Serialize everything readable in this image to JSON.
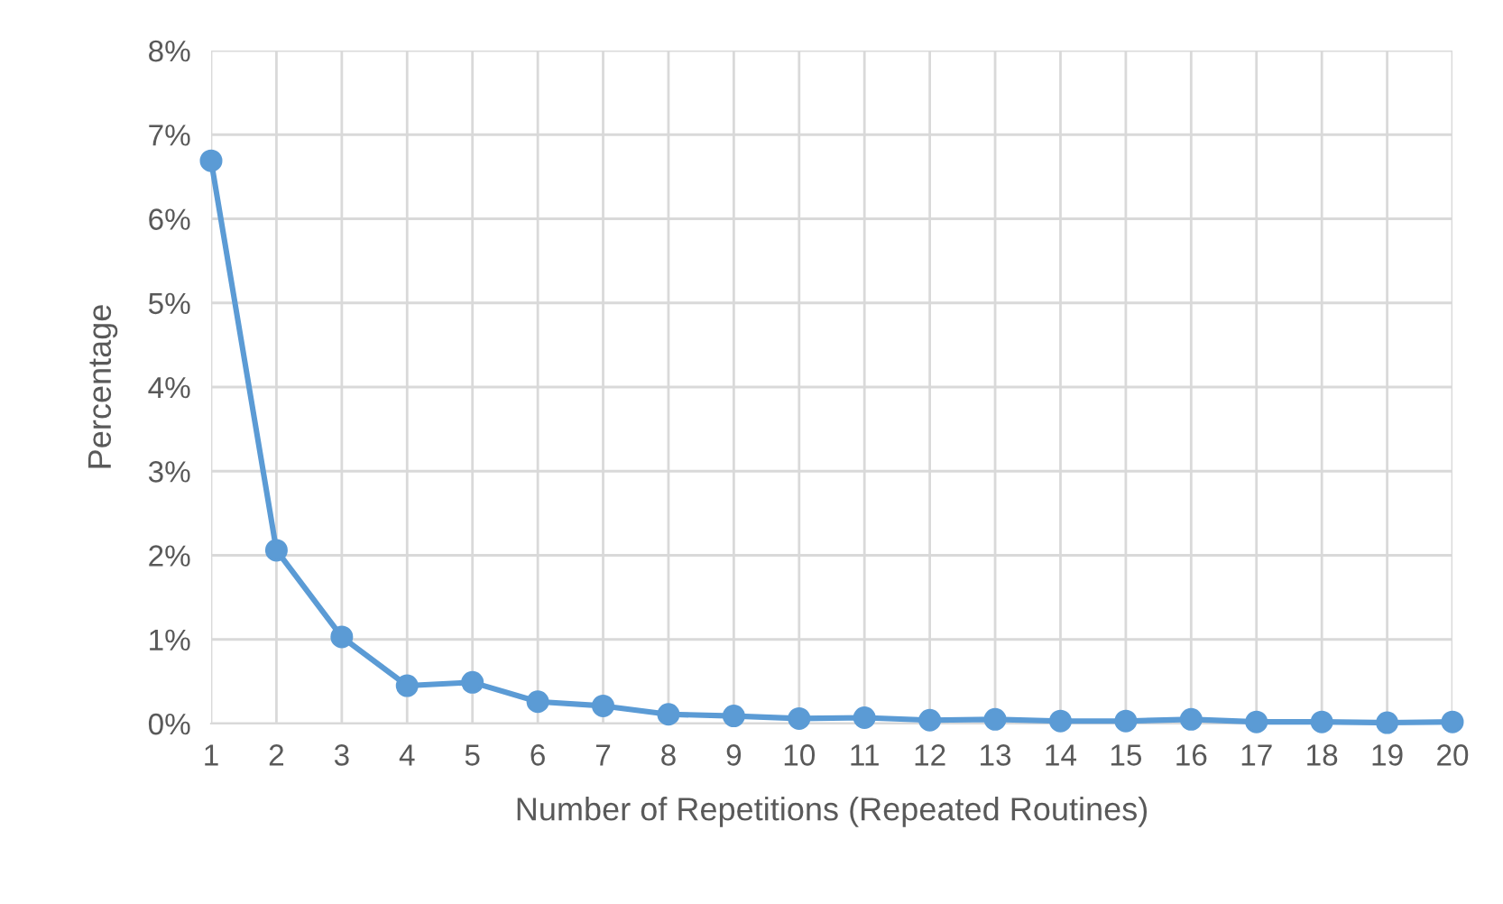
{
  "chart_data": {
    "type": "line",
    "xlabel": "Number of Repetitions (Repeated Routines)",
    "ylabel": "Percentage",
    "categories": [
      "1",
      "2",
      "3",
      "4",
      "5",
      "6",
      "7",
      "8",
      "9",
      "10",
      "11",
      "12",
      "13",
      "14",
      "15",
      "16",
      "17",
      "18",
      "19",
      "20"
    ],
    "series": [
      {
        "color": "#5b9bd5",
        "values": [
          6.69,
          2.06,
          1.03,
          0.45,
          0.49,
          0.26,
          0.21,
          0.11,
          0.09,
          0.06,
          0.07,
          0.04,
          0.05,
          0.03,
          0.03,
          0.05,
          0.02,
          0.02,
          0.01,
          0.02
        ]
      }
    ],
    "ylim": [
      0,
      8
    ],
    "yticks": [
      {
        "value": 0,
        "label": "0%"
      },
      {
        "value": 1,
        "label": "1%"
      },
      {
        "value": 2,
        "label": "2%"
      },
      {
        "value": 3,
        "label": "3%"
      },
      {
        "value": 4,
        "label": "4%"
      },
      {
        "value": 5,
        "label": "5%"
      },
      {
        "value": 6,
        "label": "6%"
      },
      {
        "value": 7,
        "label": "7%"
      },
      {
        "value": 8,
        "label": "8%"
      }
    ],
    "grid": true,
    "marker": "circle",
    "line_style": "solid",
    "legend": false
  }
}
